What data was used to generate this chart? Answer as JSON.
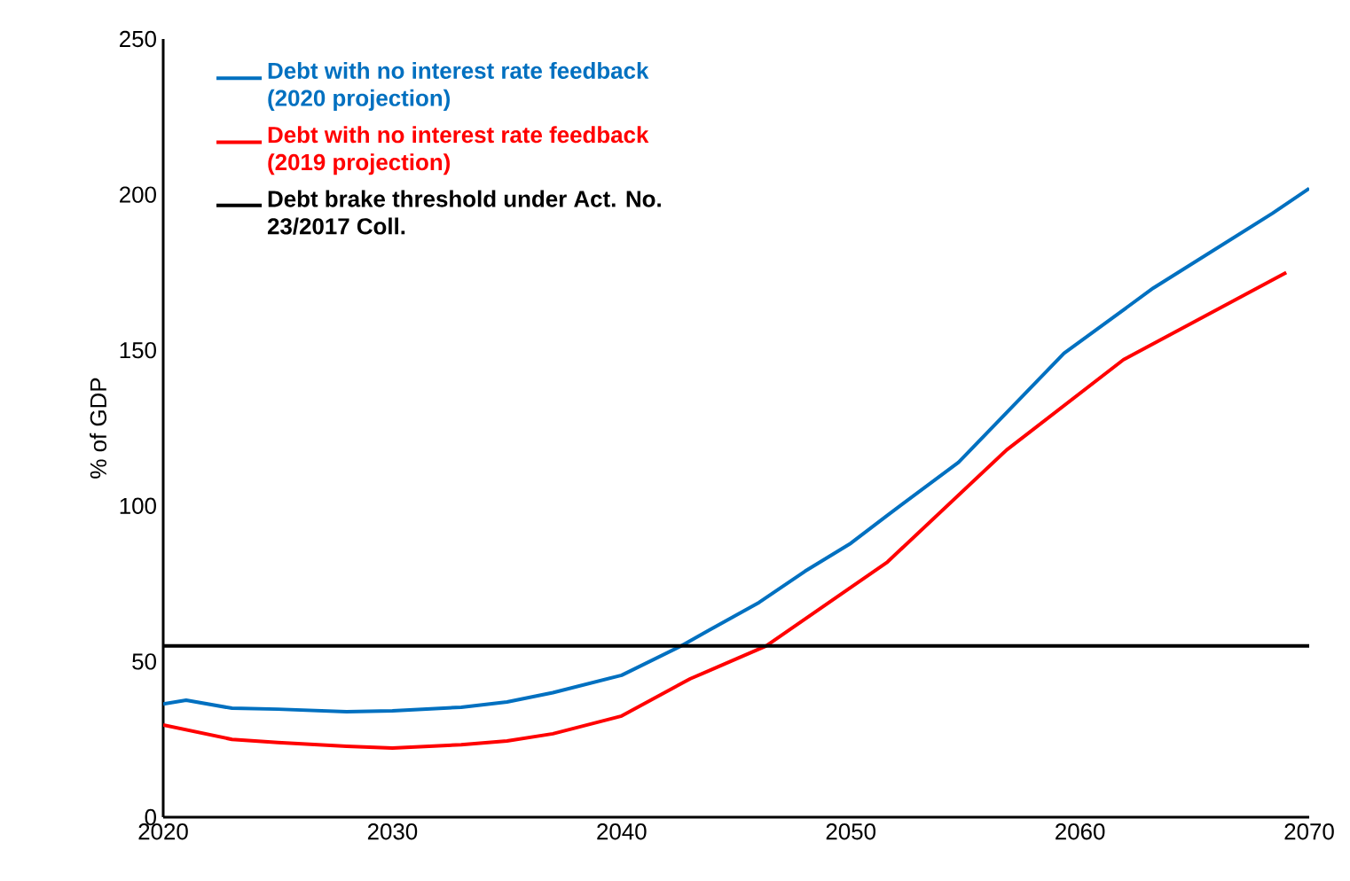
{
  "chart_data": {
    "type": "line",
    "ylabel": "% of GDP",
    "xlim": [
      2020,
      2070
    ],
    "ylim": [
      0,
      250
    ],
    "xticks": [
      2020,
      2030,
      2040,
      2050,
      2060,
      2070
    ],
    "yticks": [
      0,
      50,
      100,
      150,
      200,
      250
    ],
    "grid": false,
    "legend": "top left",
    "marker": "none",
    "line_style": "solid",
    "series": [
      {
        "name": "Debt with no interest rate feedback (2020 projection)",
        "color": "#0070c0",
        "x": [
          2020,
          2021,
          2023,
          2025,
          2028,
          2030,
          2033,
          2035,
          2037,
          2040,
          2042.6,
          2043.8,
          2046,
          2048,
          2050,
          2051.6,
          2054.7,
          2059.3,
          2063.2,
          2068.4,
          2070
        ],
        "values": [
          36.4,
          37.6,
          35,
          34.7,
          33.9,
          34.2,
          35.3,
          37,
          40,
          45.6,
          55,
          60,
          69,
          79,
          88,
          97,
          114,
          149,
          170,
          194,
          202
        ]
      },
      {
        "name": "Debt with no interest rate feedback (2019 projection)",
        "color": "#ff0000",
        "x": [
          2020,
          2023,
          2025,
          2028,
          2030,
          2033,
          2035,
          2037,
          2040,
          2043,
          2043.8,
          2046.3,
          2051.6,
          2056.8,
          2061.9,
          2069
        ],
        "values": [
          29.6,
          25,
          24,
          22.8,
          22.2,
          23.3,
          24.5,
          26.8,
          32.5,
          44.5,
          47,
          55,
          82,
          118,
          147,
          175
        ]
      },
      {
        "name": "Debt brake threshold under Act. No. 23/2017 Coll.",
        "color": "#000000",
        "x": [
          2020,
          2070
        ],
        "values": [
          55,
          55
        ]
      }
    ]
  }
}
